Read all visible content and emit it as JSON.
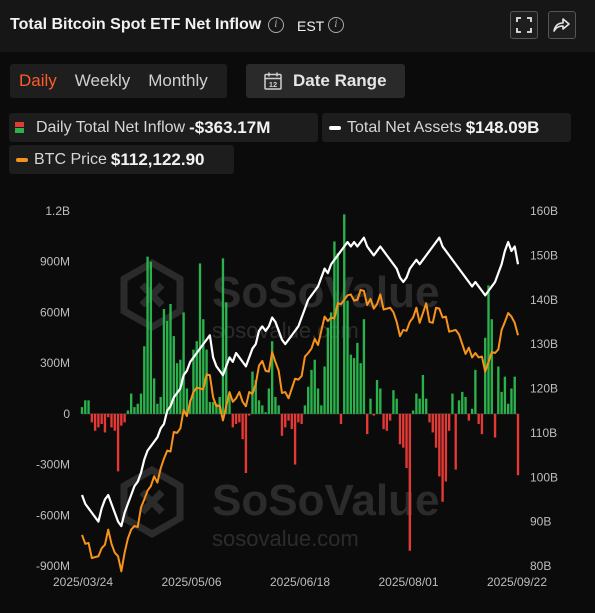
{
  "header": {
    "title": "Total Bitcoin Spot ETF Net Inflow",
    "timezone": "EST"
  },
  "tabs": [
    {
      "label": "Daily",
      "active": true
    },
    {
      "label": "Weekly",
      "active": false
    },
    {
      "label": "Monthly",
      "active": false
    }
  ],
  "date_range_label": "Date Range",
  "legend": {
    "inflow_label": "Daily Total Net Inflow",
    "inflow_value": "-$363.17M",
    "assets_label": "Total Net Assets",
    "assets_value": "$148.09B",
    "price_label": "BTC Price",
    "price_value": "$112,122.90"
  },
  "colors": {
    "positive": "#2bb24c",
    "negative": "#e53935",
    "assets_line": "#ffffff",
    "price_line": "#f7931a",
    "active_tab": "#ff5a2a"
  },
  "watermark": "SoSoValue",
  "watermark_url": "sosovalue.com",
  "chart_data": {
    "type": "bar+line",
    "left_axis": {
      "ticks": [
        "1.2B",
        "900M",
        "600M",
        "300M",
        "0",
        "-300M",
        "-600M",
        "-900M"
      ],
      "tick_values": [
        1200,
        900,
        600,
        300,
        0,
        -300,
        -600,
        -900
      ],
      "ylim": [
        -900,
        1200
      ],
      "unit": "M"
    },
    "right_axis": {
      "ticks": [
        "160B",
        "150B",
        "140B",
        "130B",
        "120B",
        "110B",
        "100B",
        "90B",
        "80B"
      ],
      "tick_values": [
        160,
        150,
        140,
        130,
        120,
        110,
        100,
        90,
        80
      ],
      "ylim": [
        80,
        160
      ],
      "unit": "B"
    },
    "x_labels": [
      "2025/03/24",
      "2025/05/06",
      "2025/06/18",
      "2025/08/01",
      "2025/09/22"
    ],
    "daily_net_inflow_millions": [
      40,
      80,
      80,
      -50,
      -100,
      -80,
      -60,
      -110,
      -20,
      -80,
      -100,
      -340,
      -70,
      -50,
      20,
      120,
      40,
      60,
      120,
      400,
      930,
      900,
      210,
      60,
      100,
      620,
      550,
      650,
      460,
      300,
      320,
      600,
      150,
      80,
      380,
      430,
      890,
      560,
      380,
      70,
      70,
      60,
      100,
      920,
      660,
      100,
      -80,
      -60,
      -50,
      -150,
      -350,
      -10,
      250,
      200,
      80,
      50,
      10,
      150,
      430,
      100,
      50,
      -130,
      -80,
      -40,
      -90,
      -300,
      -50,
      -60,
      50,
      160,
      260,
      320,
      150,
      50,
      280,
      510,
      600,
      1020,
      950,
      -60,
      1180,
      670,
      350,
      330,
      420,
      300,
      560,
      -120,
      90,
      -10,
      200,
      150,
      -90,
      -100,
      -40,
      140,
      90,
      -180,
      -200,
      -320,
      -810,
      20,
      120,
      90,
      230,
      90,
      -50,
      -110,
      -200,
      -370,
      -520,
      -400,
      -100,
      120,
      -330,
      80,
      130,
      100,
      -40,
      30,
      260,
      -60,
      -120,
      450,
      760,
      560,
      -140,
      280,
      130,
      220,
      60,
      150,
      220,
      -363
    ],
    "total_net_assets_B": [
      96,
      94,
      93,
      92,
      91,
      90,
      93,
      95,
      96,
      94,
      92,
      90,
      89,
      92,
      94,
      96,
      98,
      99,
      101,
      104,
      106,
      107,
      108,
      109,
      111,
      112,
      115,
      116,
      118,
      119,
      120,
      123,
      124,
      126,
      127,
      128,
      129,
      130,
      131,
      132,
      127,
      125,
      124,
      123,
      125,
      127,
      126,
      128,
      127,
      126,
      125,
      127,
      129,
      130,
      133,
      134,
      133,
      134,
      136,
      135,
      133,
      131,
      130,
      131,
      132,
      133,
      134,
      136,
      138,
      140,
      141,
      142,
      143,
      145,
      147,
      146,
      148,
      149,
      150,
      151,
      152,
      153,
      152,
      153,
      152,
      153,
      154,
      152,
      151,
      150,
      151,
      152,
      151,
      150,
      149,
      148,
      147,
      145,
      144,
      145,
      147,
      148,
      149,
      148,
      149,
      150,
      151,
      152,
      153,
      154,
      152,
      151,
      150,
      149,
      148,
      147,
      146,
      145,
      144,
      143,
      144,
      143,
      142,
      141,
      142,
      143,
      144,
      146,
      148,
      151,
      153,
      151,
      152,
      148
    ]
  }
}
